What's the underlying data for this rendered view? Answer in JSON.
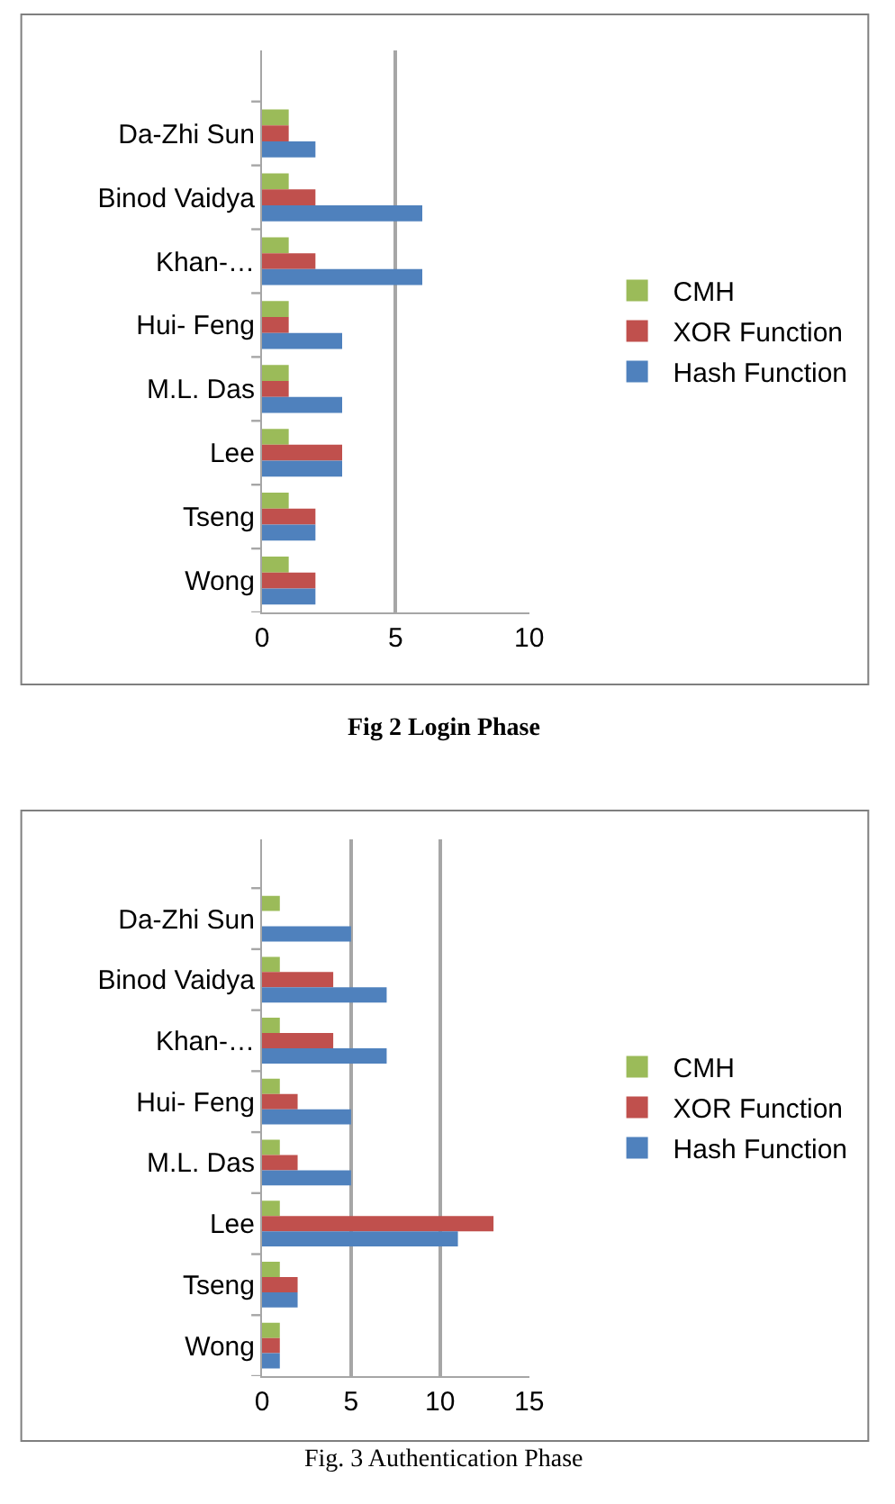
{
  "chart_data": [
    {
      "type": "bar",
      "orientation": "horizontal",
      "title": "Fig 2 Login Phase",
      "categories": [
        "Da-Zhi Sun",
        "Binod Vaidya",
        "Khan-…",
        "Hui- Feng",
        "M.L. Das",
        "Lee",
        "Tseng",
        "Wong"
      ],
      "series": [
        {
          "name": "CMH",
          "color": "#9bbb59",
          "values": [
            1,
            1,
            1,
            1,
            1,
            1,
            1,
            1
          ]
        },
        {
          "name": "XOR Function",
          "color": "#c0504d",
          "values": [
            1,
            2,
            2,
            1,
            1,
            3,
            2,
            2
          ]
        },
        {
          "name": "Hash Function",
          "color": "#4f81bd",
          "values": [
            2,
            6,
            6,
            3,
            3,
            3,
            2,
            2
          ]
        }
      ],
      "xlim": [
        0,
        10
      ],
      "xticks": [
        0,
        5,
        10
      ],
      "grid": "x",
      "legend": "right"
    },
    {
      "type": "bar",
      "orientation": "horizontal",
      "title": "Fig. 3 Authentication Phase",
      "categories": [
        "Da-Zhi Sun",
        "Binod Vaidya",
        "Khan-…",
        "Hui- Feng",
        "M.L. Das",
        "Lee",
        "Tseng",
        "Wong"
      ],
      "series": [
        {
          "name": "CMH",
          "color": "#9bbb59",
          "values": [
            1,
            1,
            1,
            1,
            1,
            1,
            1,
            1
          ]
        },
        {
          "name": "XOR Function",
          "color": "#c0504d",
          "values": [
            0,
            4,
            4,
            2,
            2,
            13,
            2,
            1
          ]
        },
        {
          "name": "Hash Function",
          "color": "#4f81bd",
          "values": [
            5,
            7,
            7,
            5,
            5,
            11,
            2,
            1
          ]
        }
      ],
      "xlim": [
        0,
        15
      ],
      "xticks": [
        0,
        5,
        10,
        15
      ],
      "grid": "x",
      "legend": "right"
    }
  ]
}
